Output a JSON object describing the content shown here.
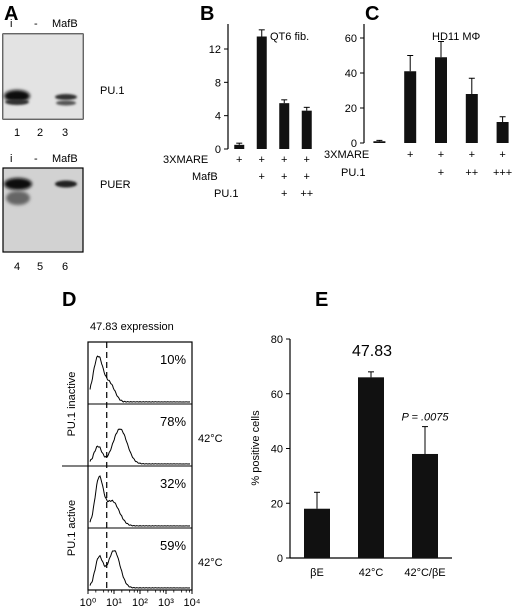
{
  "panel_letters": {
    "a": "A",
    "b": "B",
    "c": "C",
    "d": "D",
    "e": "E"
  },
  "blot_a": {
    "top": {
      "lanes": [
        "i",
        "-",
        "MafB"
      ],
      "label": "PU.1",
      "lane_numbers": [
        "1",
        "2",
        "3"
      ]
    },
    "bottom": {
      "lanes": [
        "i",
        "-",
        "MafB"
      ],
      "label": "PUER",
      "lane_numbers": [
        "4",
        "5",
        "6"
      ]
    }
  },
  "chart_data": [
    {
      "id": "B",
      "type": "bar",
      "title": "QT6 fib.",
      "ylim": [
        0,
        15
      ],
      "yticks": [
        "0",
        "4",
        "8",
        "12"
      ],
      "values": [
        0.5,
        13.5,
        5.5,
        4.6
      ],
      "errors": [
        0.2,
        0.8,
        0.4,
        0.4
      ],
      "row_labels": [
        "3XMARE",
        "MafB",
        "PU.1"
      ],
      "rows": [
        [
          "+",
          "+",
          "+",
          "+"
        ],
        [
          "",
          "+",
          "+",
          "+"
        ],
        [
          "",
          "",
          "+",
          "++"
        ]
      ]
    },
    {
      "id": "C",
      "type": "bar",
      "title": "HD11 MΦ",
      "ylim": [
        0,
        68
      ],
      "yticks": [
        "0",
        "20",
        "40",
        "60"
      ],
      "values": [
        1,
        41,
        49,
        28,
        12
      ],
      "errors": [
        0.5,
        9,
        9,
        9,
        3
      ],
      "row_labels": [
        "3XMARE",
        "PU.1"
      ],
      "rows": [
        [
          "",
          "+",
          "+",
          "+",
          "+"
        ],
        [
          "",
          "",
          "+",
          "++",
          "+++"
        ]
      ]
    },
    {
      "id": "D",
      "type": "line",
      "title": "47.83 expression",
      "xticks": [
        "10⁰",
        "10¹",
        "10²",
        "10³",
        "10⁴"
      ],
      "group_labels": [
        "PU.1 inactive",
        "PU.1 active"
      ],
      "histograms": [
        {
          "percent": "10%",
          "condition": ""
        },
        {
          "percent": "78%",
          "condition": "42°C"
        },
        {
          "percent": "32%",
          "condition": ""
        },
        {
          "percent": "59%",
          "condition": "42°C"
        }
      ]
    },
    {
      "id": "E",
      "type": "bar",
      "title": "47.83",
      "ylabel": "% positive cells",
      "ylim": [
        0,
        80
      ],
      "yticks": [
        "0",
        "20",
        "40",
        "60",
        "80"
      ],
      "categories": [
        "βE",
        "42°C",
        "42°C/βE"
      ],
      "values": [
        18,
        66,
        38
      ],
      "errors": [
        6,
        2,
        10
      ],
      "annotation": "P = .0075"
    }
  ]
}
